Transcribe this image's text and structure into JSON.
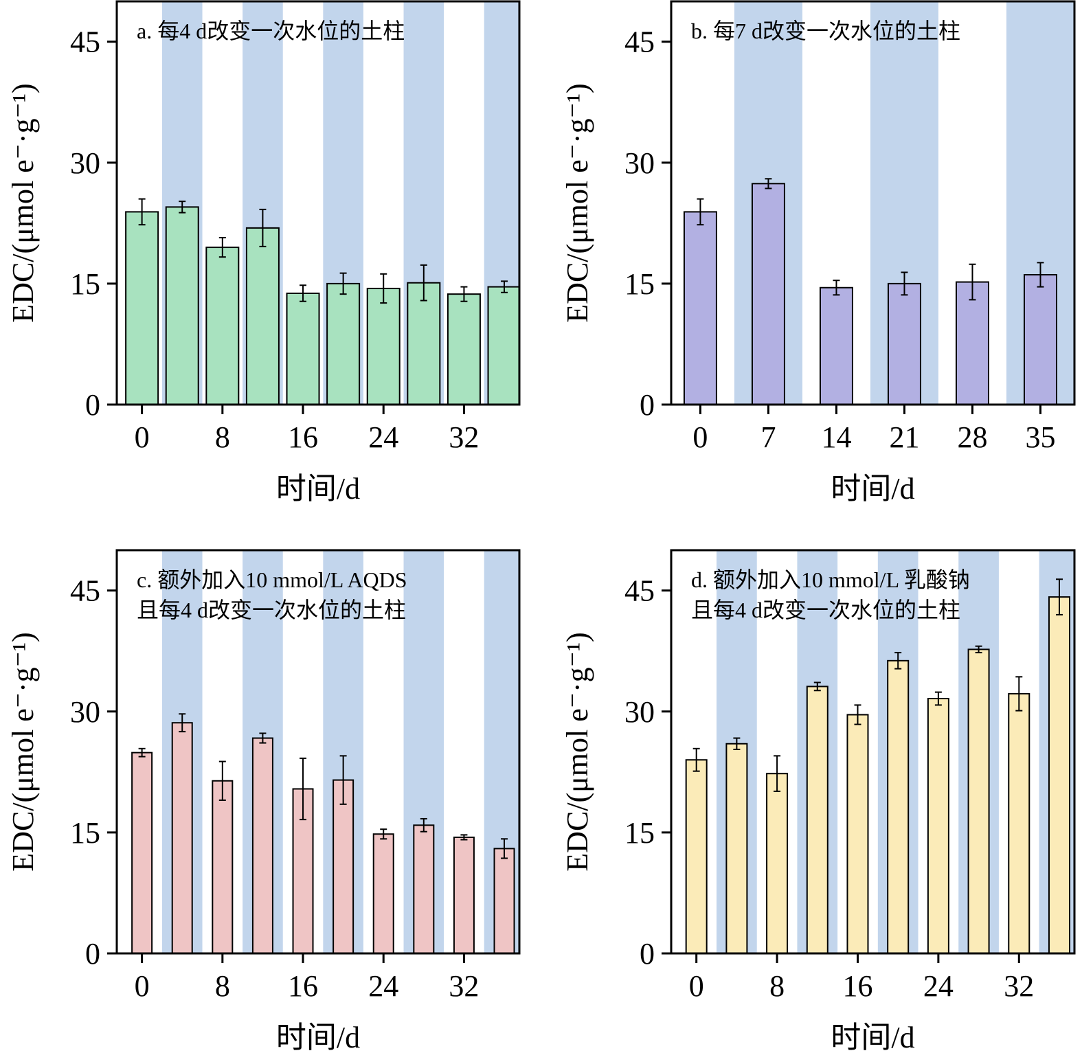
{
  "chart_data": [
    {
      "type": "bar",
      "panel_label": "a. 每4 d改变一次水位的土柱",
      "annotation_lines": [
        "a. 每4 d改变一次水位的土柱"
      ],
      "xlabel": "时间/d",
      "ylabel": "EDC/(μmol e⁻·g⁻¹)",
      "ylim": [
        0,
        50
      ],
      "yticks": [
        0,
        15,
        30,
        45
      ],
      "xticks": [
        0,
        8,
        16,
        24,
        32
      ],
      "x": [
        0,
        4,
        8,
        12,
        16,
        20,
        24,
        28,
        32,
        36
      ],
      "values": [
        23.9,
        24.5,
        19.5,
        21.9,
        13.8,
        15.0,
        14.4,
        15.1,
        13.7,
        14.6
      ],
      "errors": [
        1.6,
        0.7,
        1.2,
        2.3,
        1.0,
        1.3,
        1.8,
        2.2,
        0.9,
        0.7
      ],
      "bar_color": "#a8e2bf",
      "shade_color": "#c2d5ec",
      "shaded_intervals": [
        [
          2,
          6
        ],
        [
          10,
          14
        ],
        [
          18,
          22
        ],
        [
          26,
          30
        ],
        [
          34,
          38
        ]
      ]
    },
    {
      "type": "bar",
      "panel_label": "b. 每7 d改变一次水位的土柱",
      "annotation_lines": [
        "b. 每7 d改变一次水位的土柱"
      ],
      "xlabel": "时间/d",
      "ylabel": "EDC/(μmol e⁻·g⁻¹)",
      "ylim": [
        0,
        50
      ],
      "yticks": [
        0,
        15,
        30,
        45
      ],
      "xticks": [
        0,
        7,
        14,
        21,
        28,
        35
      ],
      "x": [
        0,
        7,
        14,
        21,
        28,
        35
      ],
      "values": [
        23.9,
        27.4,
        14.5,
        15.0,
        15.2,
        16.1
      ],
      "errors": [
        1.6,
        0.6,
        0.9,
        1.4,
        2.2,
        1.5
      ],
      "bar_color": "#b2b0e2",
      "shade_color": "#c2d5ec",
      "shaded_intervals": [
        [
          3.5,
          10.5
        ],
        [
          17.5,
          24.5
        ],
        [
          31.5,
          38.5
        ]
      ]
    },
    {
      "type": "bar",
      "panel_label": "c. 额外加入10 mmol/L AQDS 且每4 d改变一次水位的土柱",
      "annotation_lines": [
        "c. 额外加入10 mmol/L AQDS",
        "且每4 d改变一次水位的土柱"
      ],
      "xlabel": "时间/d",
      "ylabel": "EDC/(μmol e⁻·g⁻¹)",
      "ylim": [
        0,
        50
      ],
      "yticks": [
        0,
        15,
        30,
        45
      ],
      "xticks": [
        0,
        8,
        16,
        24,
        32
      ],
      "x": [
        0,
        4,
        8,
        12,
        16,
        20,
        24,
        28,
        32,
        36
      ],
      "values": [
        24.9,
        28.6,
        21.4,
        26.7,
        20.4,
        21.5,
        14.8,
        15.9,
        14.4,
        13.0
      ],
      "errors": [
        0.5,
        1.1,
        2.4,
        0.6,
        3.8,
        3.0,
        0.6,
        0.8,
        0.3,
        1.2
      ],
      "bar_color": "#efc5c5",
      "shade_color": "#c2d5ec",
      "shaded_intervals": [
        [
          2,
          6
        ],
        [
          10,
          14
        ],
        [
          18,
          22
        ],
        [
          26,
          30
        ],
        [
          34,
          38
        ]
      ]
    },
    {
      "type": "bar",
      "panel_label": "d. 额外加入10 mmol/L 乳酸钠 且每4 d改变一次水位的土柱",
      "annotation_lines": [
        "d. 额外加入10 mmol/L 乳酸钠",
        "且每4 d改变一次水位的土柱"
      ],
      "xlabel": "时间/d",
      "ylabel": "EDC/(μmol e⁻·g⁻¹)",
      "ylim": [
        0,
        50
      ],
      "yticks": [
        0,
        15,
        30,
        45
      ],
      "xticks": [
        0,
        8,
        16,
        24,
        32
      ],
      "x": [
        0,
        4,
        8,
        12,
        16,
        20,
        24,
        28,
        32,
        36
      ],
      "values": [
        24.0,
        26.0,
        22.3,
        33.1,
        29.6,
        36.3,
        31.6,
        37.7,
        32.2,
        44.2
      ],
      "errors": [
        1.4,
        0.7,
        2.2,
        0.5,
        1.2,
        1.0,
        0.8,
        0.4,
        2.1,
        2.2
      ],
      "bar_color": "#fbebb8",
      "shade_color": "#c2d5ec",
      "shaded_intervals": [
        [
          2,
          6
        ],
        [
          10,
          14
        ],
        [
          18,
          22
        ],
        [
          26,
          30
        ],
        [
          34,
          38
        ]
      ]
    }
  ]
}
